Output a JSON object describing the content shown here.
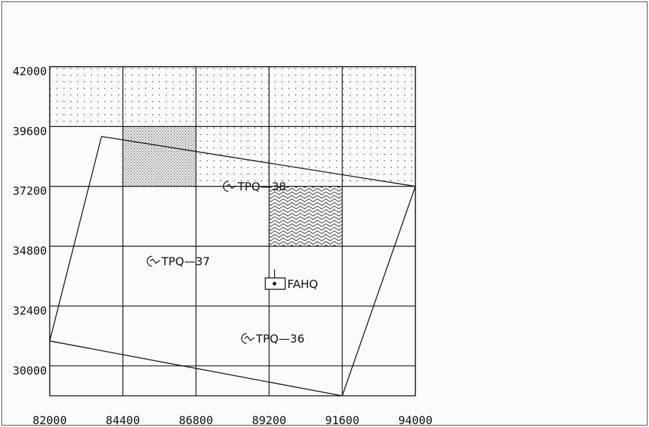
{
  "chart_data": {
    "type": "grid-map",
    "x_ticks": [
      "82000",
      "84400",
      "86800",
      "89200",
      "91600",
      "94000"
    ],
    "y_ticks": [
      "42000",
      "39600",
      "37200",
      "34800",
      "32400",
      "30000"
    ],
    "xlim": [
      82000,
      94000
    ],
    "ylim": [
      28800,
      42000
    ],
    "grid_x": [
      82000,
      84400,
      86800,
      89200,
      91600,
      94000
    ],
    "grid_y": [
      30000,
      32400,
      34800,
      37200,
      39600,
      42000
    ],
    "polygon": [
      [
        83700,
        39200
      ],
      [
        94000,
        37200
      ],
      [
        91600,
        28800
      ],
      [
        82000,
        31000
      ],
      [
        83700,
        39200
      ]
    ],
    "shaded_areas": [
      {
        "pattern": "sparse-dots",
        "x": [
          82000,
          94000
        ],
        "y": [
          39600,
          42000
        ]
      },
      {
        "pattern": "sparse-dots",
        "x": [
          86800,
          94000
        ],
        "y": [
          37200,
          39600
        ]
      },
      {
        "pattern": "dense-dots",
        "x": [
          84400,
          86800
        ],
        "y": [
          37200,
          39600
        ]
      },
      {
        "pattern": "wavy",
        "x": [
          89200,
          91600
        ],
        "y": [
          34800,
          37200
        ]
      }
    ],
    "sites": [
      {
        "label": "TPQ—38",
        "x": 87700,
        "y": 37200,
        "symbol": "radar"
      },
      {
        "label": "TPQ—37",
        "x": 85200,
        "y": 34200,
        "symbol": "radar"
      },
      {
        "label": "TPQ—36",
        "x": 88300,
        "y": 31100,
        "symbol": "radar"
      },
      {
        "label": "FAHQ",
        "x": 89400,
        "y": 33300,
        "symbol": "hq"
      }
    ]
  }
}
